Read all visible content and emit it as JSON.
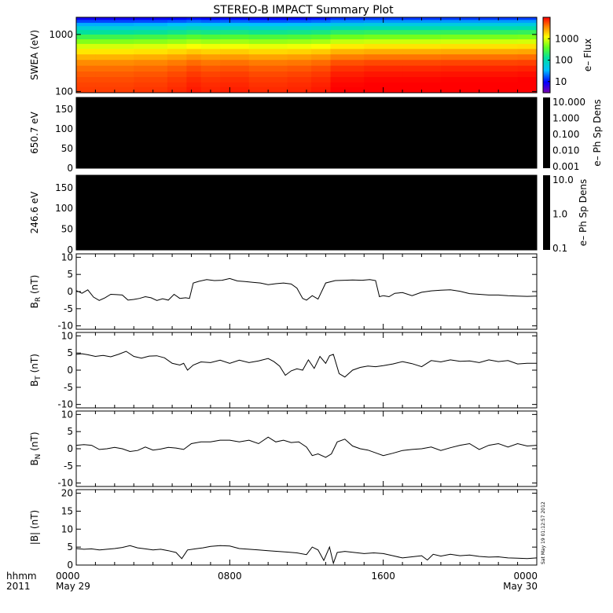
{
  "title": "STEREO-B IMPACT Summary Plot",
  "time_axis": {
    "row1": [
      "0000",
      "0800",
      "1600",
      "0000"
    ],
    "row2": [
      "May 29",
      "",
      "",
      "May 30"
    ],
    "left_label_1": "hhmm",
    "left_label_2": "2011",
    "range_hours": [
      0,
      24
    ]
  },
  "stamp": "Sat May 19 01:12:57 2012",
  "chart_data": [
    {
      "id": "swea",
      "type": "heatmap",
      "ylabel": "SWEA (eV)",
      "yscale": "log",
      "ylim": [
        95,
        2000
      ],
      "yticks": [
        100,
        1000
      ],
      "yticklabels": [
        "100",
        "1000"
      ],
      "colorbar": {
        "label": "e– Flux",
        "scale": "log",
        "range": [
          3,
          10000
        ],
        "ticks": [
          10,
          100,
          1000
        ],
        "ticklabels": [
          "10",
          "100",
          "1000"
        ]
      },
      "energy_bands_eV": [
        1900,
        1700,
        1500,
        1300,
        1100,
        900,
        750,
        620,
        500,
        400,
        320,
        250,
        200,
        160,
        130,
        110
      ],
      "times_h": [
        0,
        2,
        4,
        5.5,
        6,
        7,
        8,
        10,
        12,
        12.5,
        14,
        16,
        18,
        20,
        22,
        24
      ],
      "flux_profile_base": [
        8,
        15,
        30,
        60,
        130,
        260,
        500,
        900,
        1500,
        2400,
        3400,
        4300,
        5000,
        5600,
        6000,
        6300
      ],
      "time_factor": [
        1.0,
        1.0,
        1.05,
        1.15,
        1.3,
        1.2,
        1.25,
        1.15,
        1.2,
        1.3,
        1.6,
        1.7,
        1.7,
        1.75,
        1.75,
        1.8
      ]
    },
    {
      "id": "pad-650",
      "type": "heatmap",
      "ylabel": "650.7 eV",
      "ylim": [
        0,
        180
      ],
      "yticklabels": [
        "0",
        "50",
        "100",
        "150"
      ],
      "colorbar": {
        "label": "e– Ph Sp Dens",
        "scale": "log",
        "ticklabels": [
          "10.000",
          "1.000",
          "0.100",
          "0.010",
          "0.001"
        ]
      },
      "fill": "#000000"
    },
    {
      "id": "pad-246",
      "type": "heatmap",
      "ylabel": "246.6 eV",
      "ylim": [
        0,
        180
      ],
      "yticklabels": [
        "0",
        "50",
        "100",
        "150"
      ],
      "colorbar": {
        "label": "e– Ph Sp Dens",
        "scale": "log",
        "ticklabels": [
          "10.0",
          "1.0",
          "0.1"
        ]
      },
      "fill": "#000000"
    },
    {
      "id": "br",
      "type": "line",
      "ylabel_main": "B",
      "ylabel_sub": "R",
      "ylabel_unit": "(nT)",
      "ylim": [
        -11,
        11
      ],
      "yticks": [
        -10,
        -5,
        0,
        5,
        10
      ],
      "yticklabels": [
        "-10",
        "-5",
        "0",
        "5",
        "10"
      ],
      "x": [
        0,
        0.3,
        0.6,
        0.9,
        1.2,
        1.5,
        1.8,
        2.1,
        2.4,
        2.7,
        3,
        3.3,
        3.6,
        3.9,
        4.2,
        4.5,
        4.8,
        5.1,
        5.4,
        5.7,
        5.9,
        6.1,
        6.4,
        6.8,
        7.2,
        7.6,
        8.0,
        8.4,
        8.8,
        9.2,
        9.6,
        10.0,
        10.4,
        10.8,
        11.2,
        11.5,
        11.8,
        12.0,
        12.3,
        12.6,
        13.0,
        13.5,
        14.0,
        14.4,
        14.9,
        15.3,
        15.6,
        15.8,
        16.0,
        16.3,
        16.6,
        17.0,
        17.5,
        18.0,
        18.5,
        19.0,
        19.5,
        20.0,
        20.5,
        21.0,
        21.5,
        22.0,
        22.5,
        23.0,
        23.5,
        24.0
      ],
      "y": [
        0.3,
        -0.5,
        0.5,
        -1.6,
        -2.6,
        -1.8,
        -0.8,
        -0.9,
        -1.0,
        -2.5,
        -2.3,
        -2.0,
        -1.5,
        -1.8,
        -2.6,
        -2.1,
        -2.5,
        -0.8,
        -2.0,
        -1.8,
        -2.0,
        2.5,
        3.0,
        3.5,
        3.2,
        3.3,
        3.8,
        3.1,
        2.9,
        2.7,
        2.5,
        2.0,
        2.3,
        2.5,
        2.2,
        1.0,
        -2.0,
        -2.5,
        -1.2,
        -2.2,
        2.5,
        3.2,
        3.3,
        3.4,
        3.3,
        3.5,
        3.2,
        -1.5,
        -1.2,
        -1.5,
        -0.5,
        -0.3,
        -1.2,
        -0.2,
        0.2,
        0.4,
        0.5,
        0.1,
        -0.6,
        -0.8,
        -1.0,
        -1.0,
        -1.2,
        -1.3,
        -1.4,
        -1.3
      ]
    },
    {
      "id": "bt",
      "type": "line",
      "ylabel_main": "B",
      "ylabel_sub": "T",
      "ylabel_unit": "(nT)",
      "ylim": [
        -11,
        11
      ],
      "yticks": [
        -10,
        -5,
        0,
        5,
        10
      ],
      "yticklabels": [
        "-10",
        "-5",
        "0",
        "5",
        "10"
      ],
      "x": [
        0,
        0.3,
        0.6,
        1.0,
        1.4,
        1.8,
        2.2,
        2.6,
        3.0,
        3.4,
        3.8,
        4.2,
        4.6,
        5.0,
        5.4,
        5.6,
        5.8,
        6.1,
        6.5,
        7.0,
        7.5,
        8.0,
        8.5,
        9.0,
        9.5,
        10.0,
        10.3,
        10.6,
        10.9,
        11.2,
        11.5,
        11.8,
        12.1,
        12.4,
        12.7,
        13.0,
        13.2,
        13.4,
        13.7,
        14.0,
        14.4,
        14.8,
        15.2,
        15.6,
        16.0,
        16.5,
        17.0,
        17.5,
        18.0,
        18.5,
        19.0,
        19.5,
        20.0,
        20.5,
        21.0,
        21.5,
        22.0,
        22.5,
        23.0,
        23.5,
        24.0
      ],
      "y": [
        4.6,
        4.8,
        4.5,
        4.0,
        4.3,
        3.9,
        4.6,
        5.5,
        4.0,
        3.5,
        4.1,
        4.2,
        3.6,
        2.0,
        1.5,
        2.0,
        0.0,
        1.5,
        2.4,
        2.2,
        2.9,
        2.0,
        2.9,
        2.2,
        2.7,
        3.4,
        2.5,
        1.2,
        -1.5,
        -0.2,
        0.4,
        0.0,
        3.0,
        0.5,
        4.0,
        2.0,
        4.2,
        4.6,
        -1.0,
        -2.0,
        0.0,
        0.8,
        1.2,
        1.0,
        1.3,
        1.8,
        2.5,
        1.9,
        1.0,
        2.8,
        2.4,
        3.0,
        2.6,
        2.7,
        2.2,
        3.0,
        2.5,
        2.8,
        1.8,
        2.0,
        2.0
      ]
    },
    {
      "id": "bn",
      "type": "line",
      "ylabel_main": "B",
      "ylabel_sub": "N",
      "ylabel_unit": "(nT)",
      "ylim": [
        -11,
        11
      ],
      "yticks": [
        -10,
        -5,
        0,
        5,
        10
      ],
      "yticklabels": [
        "-10",
        "-5",
        "0",
        "5",
        "10"
      ],
      "x": [
        0,
        0.4,
        0.8,
        1.2,
        1.6,
        2.0,
        2.4,
        2.8,
        3.2,
        3.6,
        4.0,
        4.4,
        4.8,
        5.2,
        5.6,
        6.0,
        6.5,
        7.0,
        7.5,
        8.0,
        8.5,
        9.0,
        9.5,
        10.0,
        10.4,
        10.8,
        11.2,
        11.6,
        12.0,
        12.3,
        12.6,
        13.0,
        13.3,
        13.6,
        14.0,
        14.4,
        14.8,
        15.2,
        15.6,
        16.0,
        16.5,
        17.0,
        17.5,
        18.0,
        18.5,
        19.0,
        19.5,
        20.0,
        20.5,
        21.0,
        21.5,
        22.0,
        22.5,
        23.0,
        23.5,
        24.0
      ],
      "y": [
        1.0,
        1.2,
        1.0,
        -0.2,
        0.0,
        0.4,
        0.0,
        -0.8,
        -0.5,
        0.5,
        -0.4,
        -0.1,
        0.4,
        0.2,
        -0.2,
        1.5,
        2.0,
        2.0,
        2.5,
        2.5,
        2.0,
        2.5,
        1.5,
        3.4,
        2.0,
        2.5,
        1.8,
        2.0,
        0.5,
        -2.0,
        -1.5,
        -2.5,
        -1.5,
        2.0,
        2.8,
        0.8,
        0.0,
        -0.4,
        -1.2,
        -2.0,
        -1.3,
        -0.5,
        -0.2,
        0.0,
        0.5,
        -0.5,
        0.3,
        1.0,
        1.5,
        -0.2,
        1.0,
        1.5,
        0.5,
        1.5,
        0.8,
        1.0
      ]
    },
    {
      "id": "bmag",
      "type": "line",
      "ylabel_main": "|B|",
      "ylabel_sub": "",
      "ylabel_unit": "(nT)",
      "ylim": [
        0,
        21
      ],
      "yticks": [
        0,
        5,
        10,
        15,
        20
      ],
      "yticklabels": [
        "0",
        "5",
        "10",
        "15",
        "20"
      ],
      "x": [
        0,
        0.4,
        0.8,
        1.2,
        1.6,
        2.0,
        2.4,
        2.8,
        3.2,
        3.6,
        4.0,
        4.4,
        4.8,
        5.2,
        5.5,
        5.8,
        6.2,
        6.6,
        7.0,
        7.5,
        8.0,
        8.5,
        9.0,
        9.5,
        10.0,
        10.5,
        11.0,
        11.5,
        12.0,
        12.3,
        12.6,
        12.9,
        13.2,
        13.4,
        13.6,
        14.0,
        14.5,
        15.0,
        15.5,
        16.0,
        16.5,
        17.0,
        17.5,
        18.0,
        18.3,
        18.6,
        19.0,
        19.5,
        20.0,
        20.5,
        21.0,
        21.5,
        22.0,
        22.5,
        23.0,
        23.5,
        24.0
      ],
      "y": [
        4.6,
        4.4,
        4.5,
        4.2,
        4.4,
        4.6,
        4.9,
        5.4,
        4.8,
        4.5,
        4.2,
        4.4,
        4.0,
        3.5,
        1.8,
        4.2,
        4.5,
        4.8,
        5.2,
        5.4,
        5.3,
        4.6,
        4.4,
        4.2,
        4.0,
        3.8,
        3.6,
        3.4,
        2.9,
        5.0,
        4.2,
        1.3,
        5.0,
        0.5,
        3.5,
        3.8,
        3.5,
        3.2,
        3.4,
        3.2,
        2.6,
        2.0,
        2.3,
        2.6,
        1.4,
        3.0,
        2.5,
        3.0,
        2.6,
        2.8,
        2.4,
        2.2,
        2.3,
        2.0,
        1.9,
        1.8,
        2.0
      ]
    }
  ]
}
